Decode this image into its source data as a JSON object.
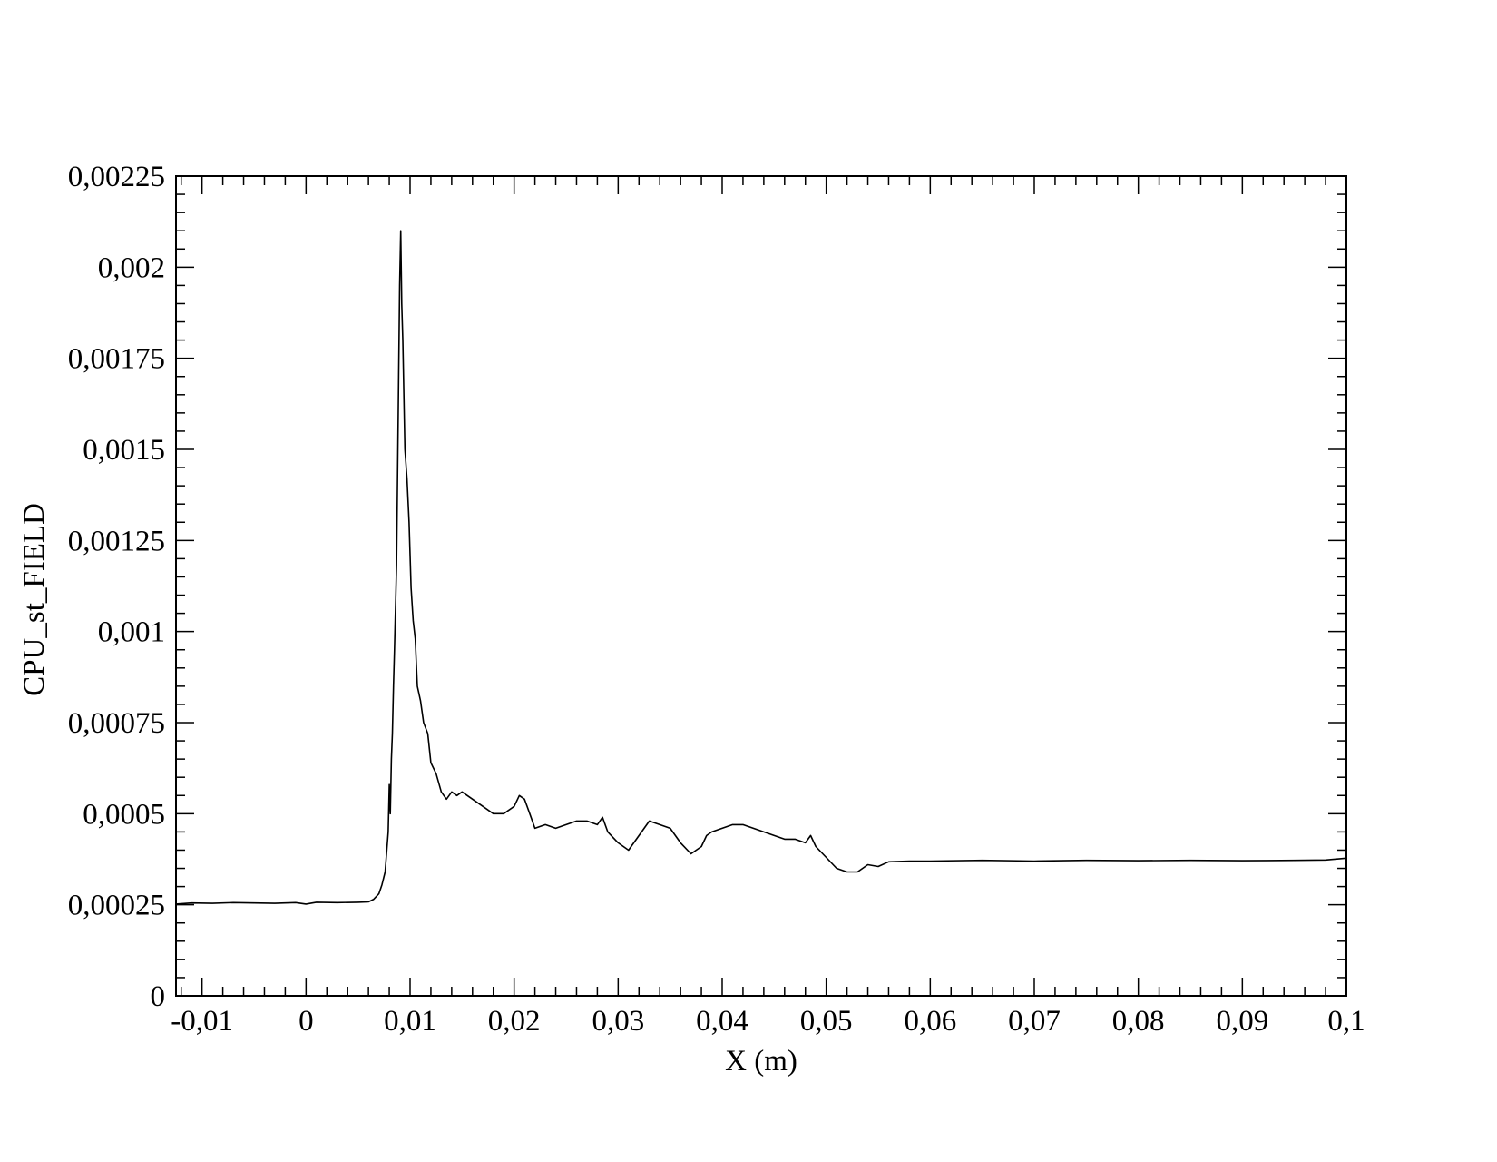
{
  "chart_data": {
    "type": "line",
    "title": "",
    "xlabel": "X (m)",
    "ylabel": "CPU_st_FIELD",
    "xlim": [
      -0.0125,
      0.1
    ],
    "ylim": [
      0,
      0.00225
    ],
    "grid": false,
    "legend": "none",
    "line_color": "#000000",
    "x_ticks": [
      -0.01,
      0,
      0.01,
      0.02,
      0.03,
      0.04,
      0.05,
      0.06,
      0.07,
      0.08,
      0.09,
      0.1
    ],
    "x_tick_labels": [
      "-0,01",
      "0",
      "0,01",
      "0,02",
      "0,03",
      "0,04",
      "0,05",
      "0,06",
      "0,07",
      "0,08",
      "0,09",
      "0,1"
    ],
    "y_ticks": [
      0,
      0.00025,
      0.0005,
      0.00075,
      0.001,
      0.00125,
      0.0015,
      0.00175,
      0.002,
      0.00225
    ],
    "y_tick_labels": [
      "0",
      "0,00025",
      "0,0005",
      "0,00075",
      "0,001",
      "0,00125",
      "0,0015",
      "0,00175",
      "0,002",
      "0,00225"
    ],
    "series": [
      {
        "x": [
          -0.0125,
          -0.011,
          -0.009,
          -0.007,
          -0.005,
          -0.003,
          -0.001,
          0,
          0.001,
          0.003,
          0.005,
          0.006,
          0.0065,
          0.007,
          0.0073,
          0.0076,
          0.0079,
          0.008,
          0.0081,
          0.0082,
          0.0083,
          0.0084,
          0.0085,
          0.0087,
          0.0089,
          0.009,
          0.0091,
          0.0092,
          0.0093,
          0.0095,
          0.0097,
          0.0099,
          0.0101,
          0.0103,
          0.0105,
          0.0107,
          0.011,
          0.0113,
          0.0117,
          0.012,
          0.0125,
          0.013,
          0.0135,
          0.014,
          0.0145,
          0.015,
          0.016,
          0.017,
          0.018,
          0.019,
          0.02,
          0.0205,
          0.021,
          0.0215,
          0.022,
          0.023,
          0.024,
          0.025,
          0.026,
          0.027,
          0.028,
          0.0285,
          0.029,
          0.03,
          0.031,
          0.032,
          0.0325,
          0.033,
          0.034,
          0.035,
          0.036,
          0.037,
          0.038,
          0.0385,
          0.039,
          0.04,
          0.041,
          0.042,
          0.043,
          0.044,
          0.045,
          0.046,
          0.047,
          0.048,
          0.0485,
          0.049,
          0.05,
          0.051,
          0.052,
          0.053,
          0.054,
          0.055,
          0.056,
          0.058,
          0.06,
          0.065,
          0.07,
          0.075,
          0.08,
          0.085,
          0.09,
          0.095,
          0.098,
          0.1
        ],
        "y": [
          0.000252,
          0.000255,
          0.000254,
          0.000256,
          0.000255,
          0.000254,
          0.000256,
          0.000252,
          0.000257,
          0.000256,
          0.000257,
          0.000258,
          0.000265,
          0.00028,
          0.000305,
          0.00034,
          0.00045,
          0.00058,
          0.0005,
          0.00065,
          0.00072,
          0.00085,
          0.00095,
          0.00118,
          0.0017,
          0.00195,
          0.0021,
          0.0019,
          0.0018,
          0.0015,
          0.00142,
          0.0013,
          0.00112,
          0.00103,
          0.00098,
          0.00085,
          0.00081,
          0.00075,
          0.00072,
          0.00064,
          0.00061,
          0.00056,
          0.00054,
          0.00056,
          0.00055,
          0.00056,
          0.00054,
          0.00052,
          0.0005,
          0.0005,
          0.00052,
          0.00055,
          0.00054,
          0.0005,
          0.00046,
          0.00047,
          0.00046,
          0.00047,
          0.00048,
          0.00048,
          0.00047,
          0.00049,
          0.00045,
          0.00042,
          0.0004,
          0.00044,
          0.00046,
          0.00048,
          0.00047,
          0.00046,
          0.00042,
          0.00039,
          0.00041,
          0.00044,
          0.00045,
          0.00046,
          0.00047,
          0.00047,
          0.00046,
          0.00045,
          0.00044,
          0.00043,
          0.00043,
          0.00042,
          0.00044,
          0.00041,
          0.00038,
          0.00035,
          0.00034,
          0.00034,
          0.00036,
          0.000355,
          0.000368,
          0.00037,
          0.00037,
          0.000372,
          0.00037,
          0.000372,
          0.000371,
          0.000372,
          0.000371,
          0.000372,
          0.000373,
          0.000378
        ]
      }
    ]
  }
}
